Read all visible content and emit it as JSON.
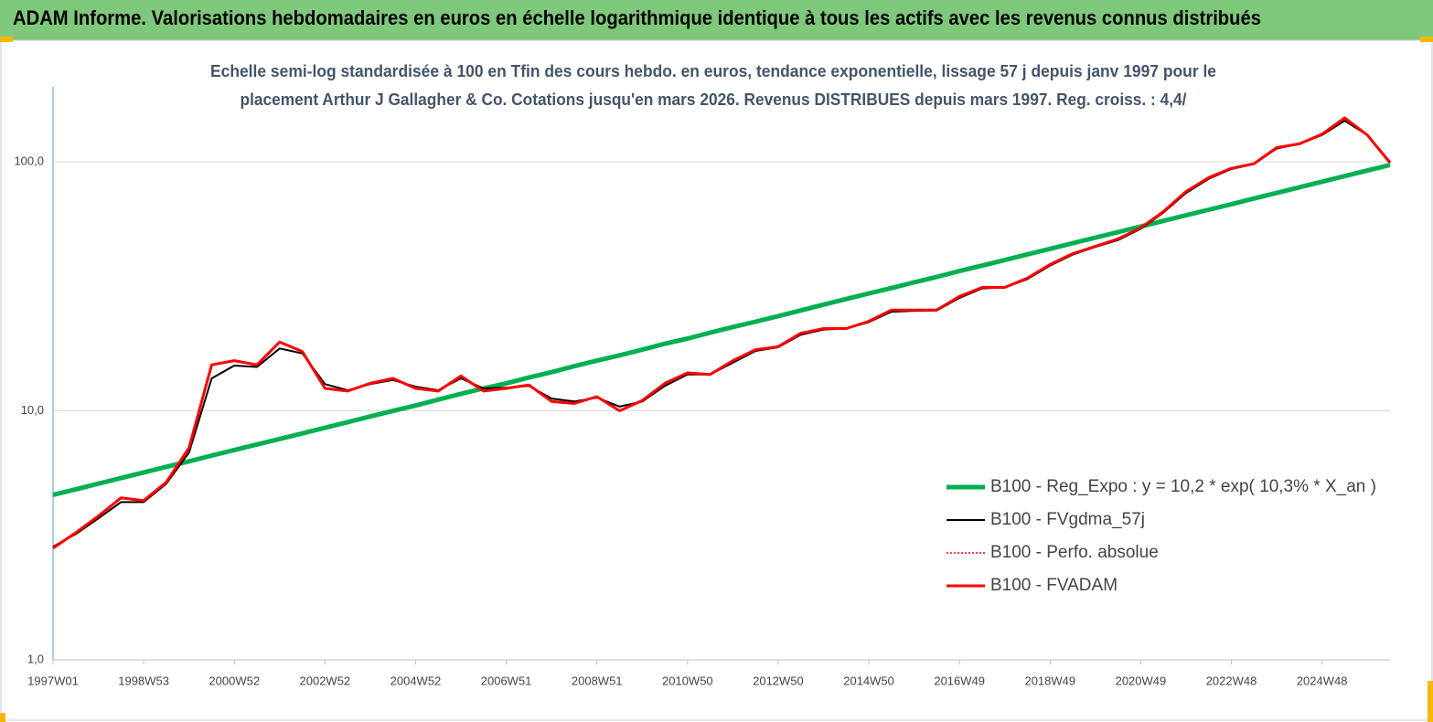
{
  "header": "ADAM Informe. Valorisations hebdomadaires en euros en échelle logarithmique identique à tous les actifs avec les revenus connus distribués",
  "chart_data": {
    "type": "line",
    "subtitle": [
      "Echelle semi-log standardisée à 100 en Tfin des cours hebdo. en euros, tendance exponentielle, lissage 57 j depuis janv 1997 pour le",
      "placement Arthur J Gallagher & Co. Cotations jusqu'en mars 2026. Revenus DISTRIBUES depuis mars 1997. Reg. croiss. : 4,4/"
    ],
    "categories": [
      "1997W01",
      null,
      null,
      null,
      "1998W53",
      null,
      null,
      null,
      "2000W52",
      null,
      null,
      null,
      "2002W52",
      null,
      null,
      null,
      "2004W52",
      null,
      null,
      null,
      "2006W51",
      null,
      null,
      null,
      "2008W51",
      null,
      null,
      null,
      "2010W50",
      null,
      null,
      null,
      "2012W50",
      null,
      null,
      null,
      "2014W50",
      null,
      null,
      null,
      "2016W49",
      null,
      null,
      null,
      "2018W49",
      null,
      null,
      null,
      "2020W49",
      null,
      null,
      null,
      "2022W48",
      null,
      null,
      null,
      "2024W48",
      null,
      null,
      null
    ],
    "ylim": [
      1,
      200
    ],
    "log_scale": true,
    "yticks": [
      {
        "value": 1,
        "label": "1,0"
      },
      {
        "value": 10,
        "label": "10,0"
      },
      {
        "value": 100,
        "label": "100,0"
      }
    ],
    "legend": "lower right",
    "series": [
      {
        "name": "B100 - Reg_Expo : y = 10,2 * exp( 10,3% *  X_an )",
        "color": "#00b050",
        "width": 5,
        "style": "solid",
        "values": [
          4.6,
          4.84,
          5.1,
          5.37,
          5.66,
          5.96,
          6.27,
          6.61,
          6.96,
          7.33,
          7.71,
          8.12,
          8.55,
          9.01,
          9.49,
          9.99,
          10.5,
          11.1,
          11.7,
          12.3,
          12.9,
          13.6,
          14.3,
          15.1,
          15.9,
          16.7,
          17.6,
          18.6,
          19.5,
          20.6,
          21.7,
          22.8,
          24.0,
          25.3,
          26.7,
          28.1,
          29.6,
          31.1,
          32.8,
          34.5,
          36.4,
          38.3,
          40.3,
          42.5,
          44.7,
          47.1,
          49.6,
          52.2,
          55.0,
          57.9,
          61.0,
          64.2,
          67.6,
          71.2,
          75.0,
          79.0,
          83.2,
          87.6,
          92.2,
          97.1
        ]
      },
      {
        "name": "B100 - FVgdma_57j",
        "color": "#000000",
        "width": 2,
        "style": "solid",
        "values": [
          2.85,
          3.2,
          3.7,
          4.3,
          4.3,
          5.1,
          6.8,
          13.5,
          15.2,
          15.0,
          17.8,
          17.0,
          12.8,
          12.1,
          12.8,
          13.3,
          12.5,
          12.1,
          13.5,
          12.3,
          12.4,
          12.6,
          11.2,
          10.9,
          11.3,
          10.4,
          10.9,
          12.6,
          14.0,
          14.0,
          15.6,
          17.4,
          18.0,
          20.2,
          21.2,
          21.4,
          22.7,
          25.0,
          25.2,
          25.3,
          28.4,
          31.0,
          31.3,
          33.8,
          38.3,
          42.4,
          45.5,
          48.5,
          53.8,
          62.5,
          75.0,
          85.5,
          93.5,
          98.0,
          113,
          118,
          128,
          146,
          128,
          100
        ]
      },
      {
        "name": "B100 - Perfo. absolue",
        "color": "#ff0000",
        "width": 1.5,
        "style": "dotted",
        "values": [
          2.81,
          3.24,
          3.78,
          4.47,
          4.36,
          5.17,
          7.1,
          15.3,
          15.9,
          15.3,
          18.9,
          17.3,
          12.3,
          12.0,
          12.9,
          13.5,
          12.3,
          12.0,
          13.8,
          12.0,
          12.3,
          12.7,
          10.9,
          10.7,
          11.4,
          10.0,
          11.0,
          12.9,
          14.2,
          14.0,
          15.9,
          17.6,
          18.1,
          20.5,
          21.4,
          21.4,
          22.9,
          25.4,
          25.4,
          25.4,
          28.8,
          31.3,
          31.3,
          34.1,
          38.7,
          42.8,
          45.8,
          49.0,
          54.3,
          63.1,
          76.0,
          86.4,
          94.1,
          98.3,
          114,
          118,
          129,
          150,
          128,
          99
        ]
      },
      {
        "name": "B100 - FVADAM",
        "color": "#ff0000",
        "width": 3,
        "style": "solid",
        "values": [
          2.81,
          3.24,
          3.78,
          4.47,
          4.36,
          5.17,
          7.1,
          15.3,
          15.9,
          15.3,
          18.9,
          17.3,
          12.3,
          12.0,
          12.9,
          13.5,
          12.3,
          12.0,
          13.8,
          12.0,
          12.3,
          12.7,
          10.9,
          10.7,
          11.4,
          10.0,
          11.0,
          12.9,
          14.2,
          14.0,
          15.9,
          17.6,
          18.1,
          20.5,
          21.4,
          21.4,
          22.9,
          25.4,
          25.4,
          25.4,
          28.8,
          31.3,
          31.3,
          34.1,
          38.7,
          42.8,
          45.8,
          49.0,
          54.3,
          63.1,
          76.0,
          86.4,
          94.1,
          98.3,
          114,
          118,
          129,
          150,
          128,
          99
        ]
      }
    ]
  }
}
